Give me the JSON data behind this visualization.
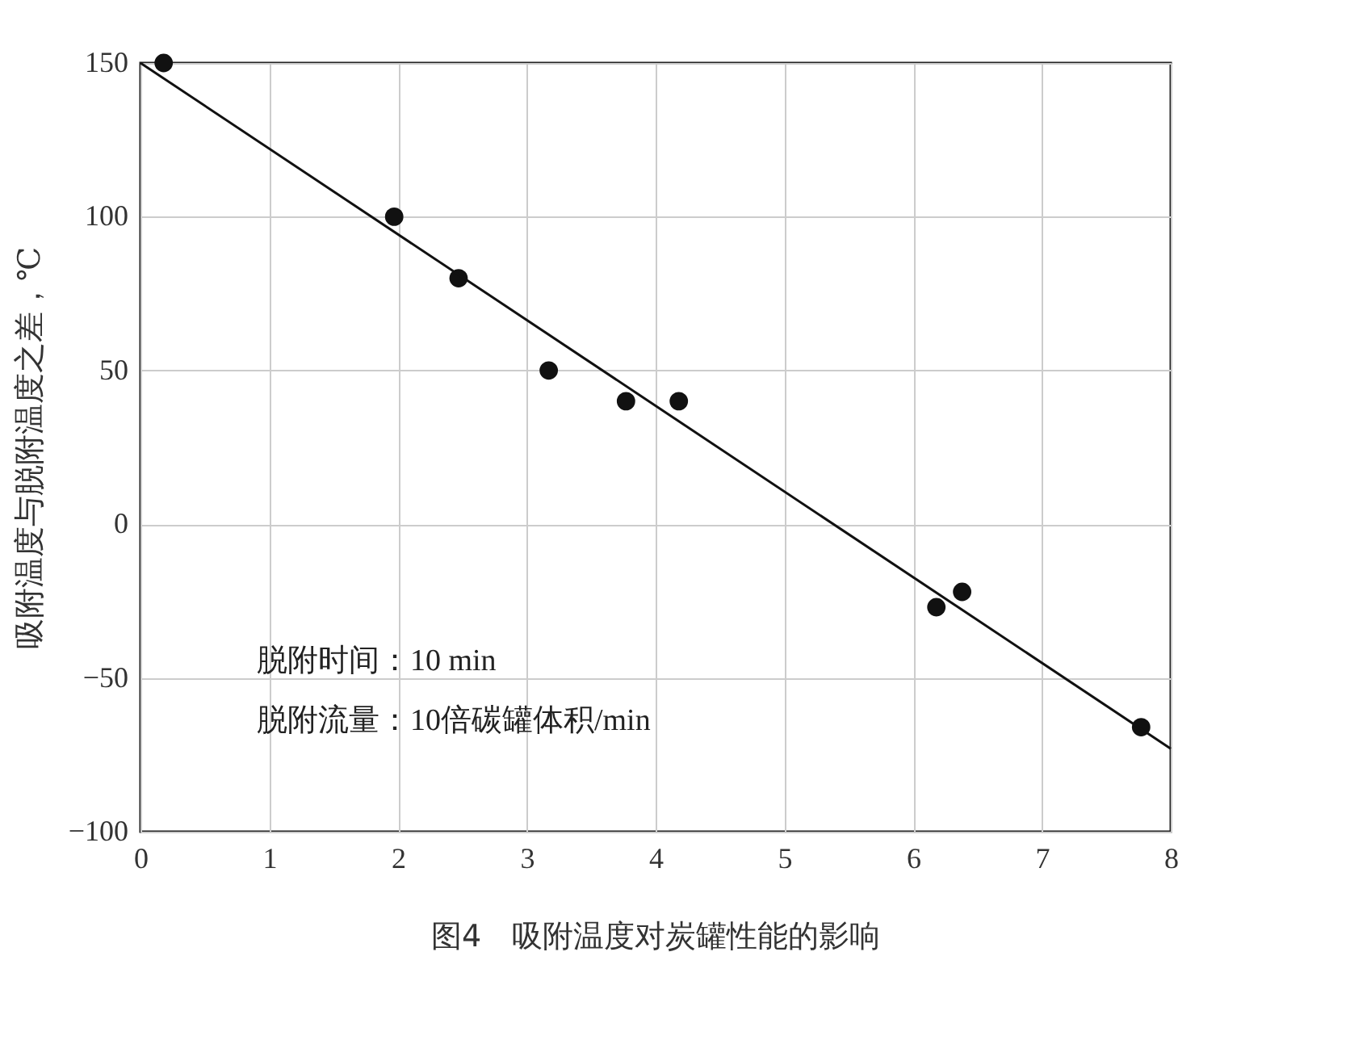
{
  "chart_data": {
    "type": "scatter",
    "title": "图4　吸附温度对炭罐性能的影响",
    "ylabel": "吸附温度与脱附温度之差，℃",
    "xlim": [
      0,
      8
    ],
    "xticks": [
      0,
      1,
      2,
      3,
      4,
      5,
      6,
      7,
      8
    ],
    "ylim": [
      -100,
      150
    ],
    "yticks": [
      -100,
      -50,
      0,
      50,
      100,
      150
    ],
    "grid": true,
    "series": [
      {
        "marker": "circle",
        "color": "#111111",
        "x": [
          0.18,
          1.97,
          2.47,
          3.17,
          3.77,
          4.18,
          6.18,
          6.38,
          7.77
        ],
        "values": [
          150,
          100,
          80,
          50,
          40,
          40,
          -27,
          -22,
          -66
        ]
      },
      {
        "type": "line",
        "color": "#111111",
        "x": [
          0,
          8
        ],
        "values": [
          150,
          -73
        ]
      }
    ],
    "annotations": [
      "脱附时间：10 min",
      "脱附流量：10倍碳罐体积/min"
    ]
  }
}
